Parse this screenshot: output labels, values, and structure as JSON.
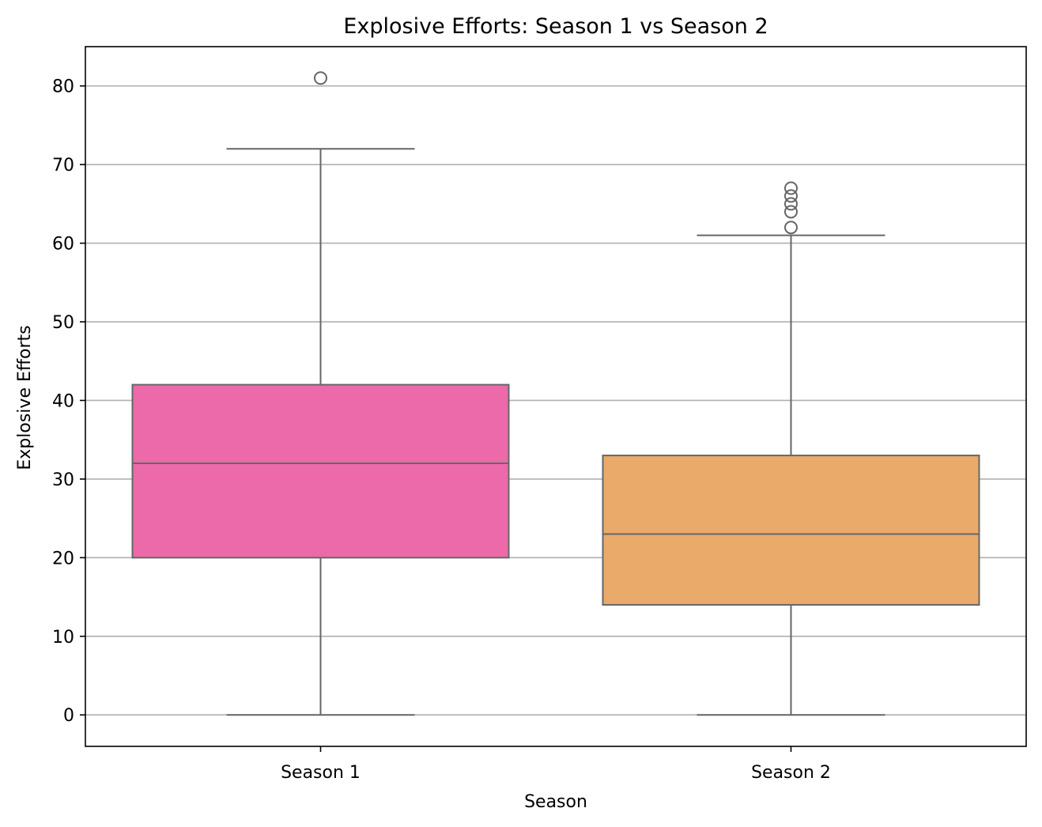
{
  "chart_data": {
    "type": "box",
    "title": "Explosive Efforts: Season 1 vs Season 2",
    "xlabel": "Season",
    "ylabel": "Explosive Efforts",
    "ylim": [
      -4,
      85
    ],
    "yticks": [
      0,
      10,
      20,
      30,
      40,
      50,
      60,
      70,
      80
    ],
    "grid": {
      "y": true,
      "x": false
    },
    "categories": [
      "Season 1",
      "Season 2"
    ],
    "series": [
      {
        "category": "Season 1",
        "color": "#ec6aa9",
        "whisker_low": 0,
        "q1": 20,
        "median": 32,
        "q3": 42,
        "whisker_high": 72,
        "outliers": [
          81
        ]
      },
      {
        "category": "Season 2",
        "color": "#eaaa6a",
        "whisker_low": 0,
        "q1": 14,
        "median": 23,
        "q3": 33,
        "whisker_high": 61,
        "outliers": [
          62,
          64,
          65,
          66,
          67
        ]
      }
    ],
    "line_color": "#666666",
    "grid_color": "#b0b0b0"
  }
}
